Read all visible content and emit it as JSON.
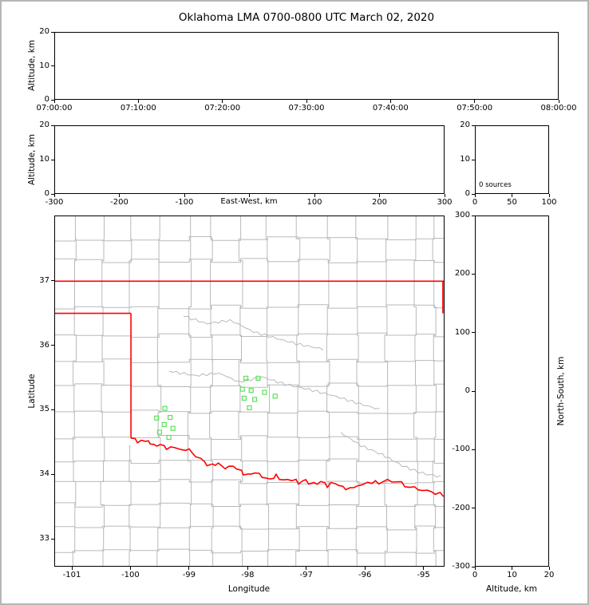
{
  "title": "Oklahoma LMA 0700-0800 UTC March 02, 2020",
  "colors": {
    "state_border": "#ff0000",
    "county_line": "#b9b9b9",
    "station": "#5ce05c",
    "axis": "#000000",
    "frame": "#b6b6b6"
  },
  "chart_data": [
    {
      "id": "time_height",
      "type": "scatter",
      "ylabel": "Altitude, km",
      "ylim": [
        0,
        20
      ],
      "yticks": [
        20,
        10,
        0
      ],
      "xlim": [
        0,
        6
      ],
      "xticks": [
        0,
        1,
        2,
        3,
        4,
        5,
        6
      ],
      "xtick_labels": [
        "07:00:00",
        "07:10:00",
        "07:20:00",
        "07:30:00",
        "07:40:00",
        "07:50:00",
        "08:00:00"
      ],
      "points": []
    },
    {
      "id": "ew_height",
      "type": "scatter",
      "ylabel": "Altitude, km",
      "xlabel": "East-West, km",
      "ylim": [
        0,
        20
      ],
      "yticks": [
        20,
        10,
        0
      ],
      "xlim": [
        -300,
        300
      ],
      "xticks": [
        -300,
        -200,
        -100,
        0,
        100,
        200,
        300
      ],
      "xtick_labels": [
        "-300",
        "-200",
        "-100",
        "",
        "100",
        "200",
        "300"
      ],
      "points": []
    },
    {
      "id": "alt_hist",
      "type": "scatter",
      "ylim": [
        0,
        20
      ],
      "yticks": [
        20,
        10,
        0
      ],
      "xlim": [
        0,
        100
      ],
      "xticks": [
        0,
        50,
        100
      ],
      "annotation": "0 sources",
      "points": []
    },
    {
      "id": "map",
      "type": "scatter",
      "xlabel": "Longitude",
      "ylabel": "Latitude",
      "xlim": [
        -101.3,
        -94.64
      ],
      "ylim": [
        32.57,
        38.01
      ],
      "xticks": [
        -101,
        -100,
        -99,
        -98,
        -97,
        -96,
        -95
      ],
      "yticks": [
        37,
        36,
        35,
        34,
        33
      ],
      "stations": [
        [
          -98.03,
          35.49
        ],
        [
          -97.82,
          35.49
        ],
        [
          -98.09,
          35.32
        ],
        [
          -97.94,
          35.3
        ],
        [
          -97.71,
          35.27
        ],
        [
          -98.06,
          35.18
        ],
        [
          -97.88,
          35.16
        ],
        [
          -97.53,
          35.21
        ],
        [
          -97.97,
          35.03
        ],
        [
          -99.42,
          35.02
        ],
        [
          -99.56,
          34.87
        ],
        [
          -99.33,
          34.88
        ],
        [
          -99.43,
          34.77
        ],
        [
          -99.28,
          34.71
        ],
        [
          -99.51,
          34.65
        ],
        [
          -99.35,
          34.57
        ]
      ],
      "state_border": [
        [
          [
            -101.3,
            37.0
          ],
          [
            -94.62,
            37.0
          ]
        ],
        [
          [
            -94.655,
            37.0
          ],
          [
            -94.655,
            36.5
          ]
        ],
        [
          [
            -101.3,
            36.5
          ],
          [
            -100.0,
            36.5
          ]
        ],
        [
          [
            -100.0,
            36.5
          ],
          [
            -100.0,
            34.56
          ]
        ]
      ],
      "red_river": [
        [
          -100.0,
          34.56
        ],
        [
          -99.88,
          34.5
        ],
        [
          -99.76,
          34.53
        ],
        [
          -99.62,
          34.44
        ],
        [
          -99.5,
          34.46
        ],
        [
          -99.38,
          34.4
        ],
        [
          -99.25,
          34.42
        ],
        [
          -99.12,
          34.36
        ],
        [
          -99.0,
          34.38
        ],
        [
          -98.88,
          34.28
        ],
        [
          -98.75,
          34.18
        ],
        [
          -98.62,
          34.13
        ],
        [
          -98.5,
          34.16
        ],
        [
          -98.38,
          34.09
        ],
        [
          -98.25,
          34.13
        ],
        [
          -98.12,
          34.04
        ],
        [
          -98.0,
          33.98
        ],
        [
          -97.88,
          34.03
        ],
        [
          -97.75,
          33.95
        ],
        [
          -97.62,
          33.92
        ],
        [
          -97.5,
          33.97
        ],
        [
          -97.38,
          33.9
        ],
        [
          -97.25,
          33.92
        ],
        [
          -97.12,
          33.86
        ],
        [
          -97.0,
          33.9
        ],
        [
          -96.88,
          33.84
        ],
        [
          -96.75,
          33.88
        ],
        [
          -96.62,
          33.82
        ],
        [
          -96.5,
          33.86
        ],
        [
          -96.38,
          33.79
        ],
        [
          -96.25,
          33.77
        ],
        [
          -96.12,
          33.82
        ],
        [
          -96.0,
          33.84
        ],
        [
          -95.88,
          33.88
        ],
        [
          -95.75,
          33.86
        ],
        [
          -95.6,
          33.9
        ],
        [
          -95.45,
          33.88
        ],
        [
          -95.3,
          33.82
        ],
        [
          -95.15,
          33.78
        ],
        [
          -95.0,
          33.75
        ],
        [
          -94.85,
          33.72
        ],
        [
          -94.64,
          33.67
        ]
      ],
      "county_vlines": [
        {
          "lon": -100.96,
          "lat_from": 32.57,
          "lat_to": 38.01
        },
        {
          "lon": -100.49,
          "lat_from": 32.57,
          "lat_to": 38.01
        },
        {
          "lon": -100.0,
          "lat_from": 36.5,
          "lat_to": 38.01
        },
        {
          "lon": -100.0,
          "lat_from": 32.57,
          "lat_to": 34.45
        },
        {
          "lon": -99.52,
          "lat_from": 32.57,
          "lat_to": 38.01
        },
        {
          "lon": -99.0,
          "lat_from": 32.57,
          "lat_to": 38.01
        },
        {
          "lon": -98.62,
          "lat_from": 32.57,
          "lat_to": 38.01
        },
        {
          "lon": -98.12,
          "lat_from": 32.57,
          "lat_to": 38.01
        },
        {
          "lon": -97.66,
          "lat_from": 32.57,
          "lat_to": 38.01
        },
        {
          "lon": -97.14,
          "lat_from": 32.57,
          "lat_to": 38.01
        },
        {
          "lon": -96.62,
          "lat_from": 32.57,
          "lat_to": 38.01
        },
        {
          "lon": -96.12,
          "lat_from": 32.57,
          "lat_to": 38.01
        },
        {
          "lon": -95.62,
          "lat_from": 32.57,
          "lat_to": 38.01
        },
        {
          "lon": -95.12,
          "lat_from": 32.57,
          "lat_to": 38.01
        },
        {
          "lon": -94.8,
          "lat_from": 32.57,
          "lat_to": 38.01
        }
      ],
      "county_hlines": [
        {
          "lat": 37.66,
          "lon_from": -101.3,
          "lon_to": -94.64
        },
        {
          "lat": 37.32,
          "lon_from": -101.3,
          "lon_to": -94.64
        },
        {
          "lat": 36.6,
          "lon_from": -101.3,
          "lon_to": -94.64
        },
        {
          "lat": 36.16,
          "lon_from": -101.3,
          "lon_to": -94.64
        },
        {
          "lat": 35.76,
          "lon_from": -101.3,
          "lon_to": -94.64
        },
        {
          "lat": 35.38,
          "lon_from": -101.3,
          "lon_to": -94.64
        },
        {
          "lat": 34.96,
          "lon_from": -101.3,
          "lon_to": -94.64
        },
        {
          "lat": 34.57,
          "lon_from": -101.3,
          "lon_to": -94.64
        },
        {
          "lat": 34.2,
          "lon_from": -101.3,
          "lon_to": -94.64
        },
        {
          "lat": 33.88,
          "lon_from": -101.3,
          "lon_to": -94.64
        },
        {
          "lat": 33.52,
          "lon_from": -101.3,
          "lon_to": -94.64
        },
        {
          "lat": 33.16,
          "lon_from": -101.3,
          "lon_to": -94.64
        },
        {
          "lat": 32.8,
          "lon_from": -101.3,
          "lon_to": -94.64
        }
      ],
      "rivers": [
        [
          [
            -99.35,
            35.6
          ],
          [
            -98.9,
            35.52
          ],
          [
            -98.5,
            35.56
          ],
          [
            -98.15,
            35.44
          ],
          [
            -97.75,
            35.52
          ],
          [
            -97.35,
            35.4
          ],
          [
            -96.95,
            35.32
          ],
          [
            -96.55,
            35.22
          ],
          [
            -96.15,
            35.1
          ],
          [
            -95.75,
            35.0
          ]
        ],
        [
          [
            -99.1,
            36.45
          ],
          [
            -98.7,
            36.33
          ],
          [
            -98.3,
            36.38
          ],
          [
            -97.9,
            36.22
          ],
          [
            -97.5,
            36.12
          ],
          [
            -97.1,
            36.02
          ],
          [
            -96.7,
            35.95
          ]
        ],
        [
          [
            -96.4,
            34.65
          ],
          [
            -96.05,
            34.45
          ],
          [
            -95.7,
            34.3
          ],
          [
            -95.35,
            34.12
          ],
          [
            -95.0,
            34.02
          ],
          [
            -94.7,
            33.95
          ]
        ]
      ]
    },
    {
      "id": "ns_height",
      "type": "scatter",
      "xlabel": "Altitude, km",
      "ylabel": "North-South, km",
      "xlim": [
        0,
        20
      ],
      "xticks": [
        0,
        10,
        20
      ],
      "ylim": [
        -300,
        300
      ],
      "yticks": [
        300,
        200,
        100,
        0,
        -100,
        -200,
        -300
      ],
      "points": []
    }
  ]
}
